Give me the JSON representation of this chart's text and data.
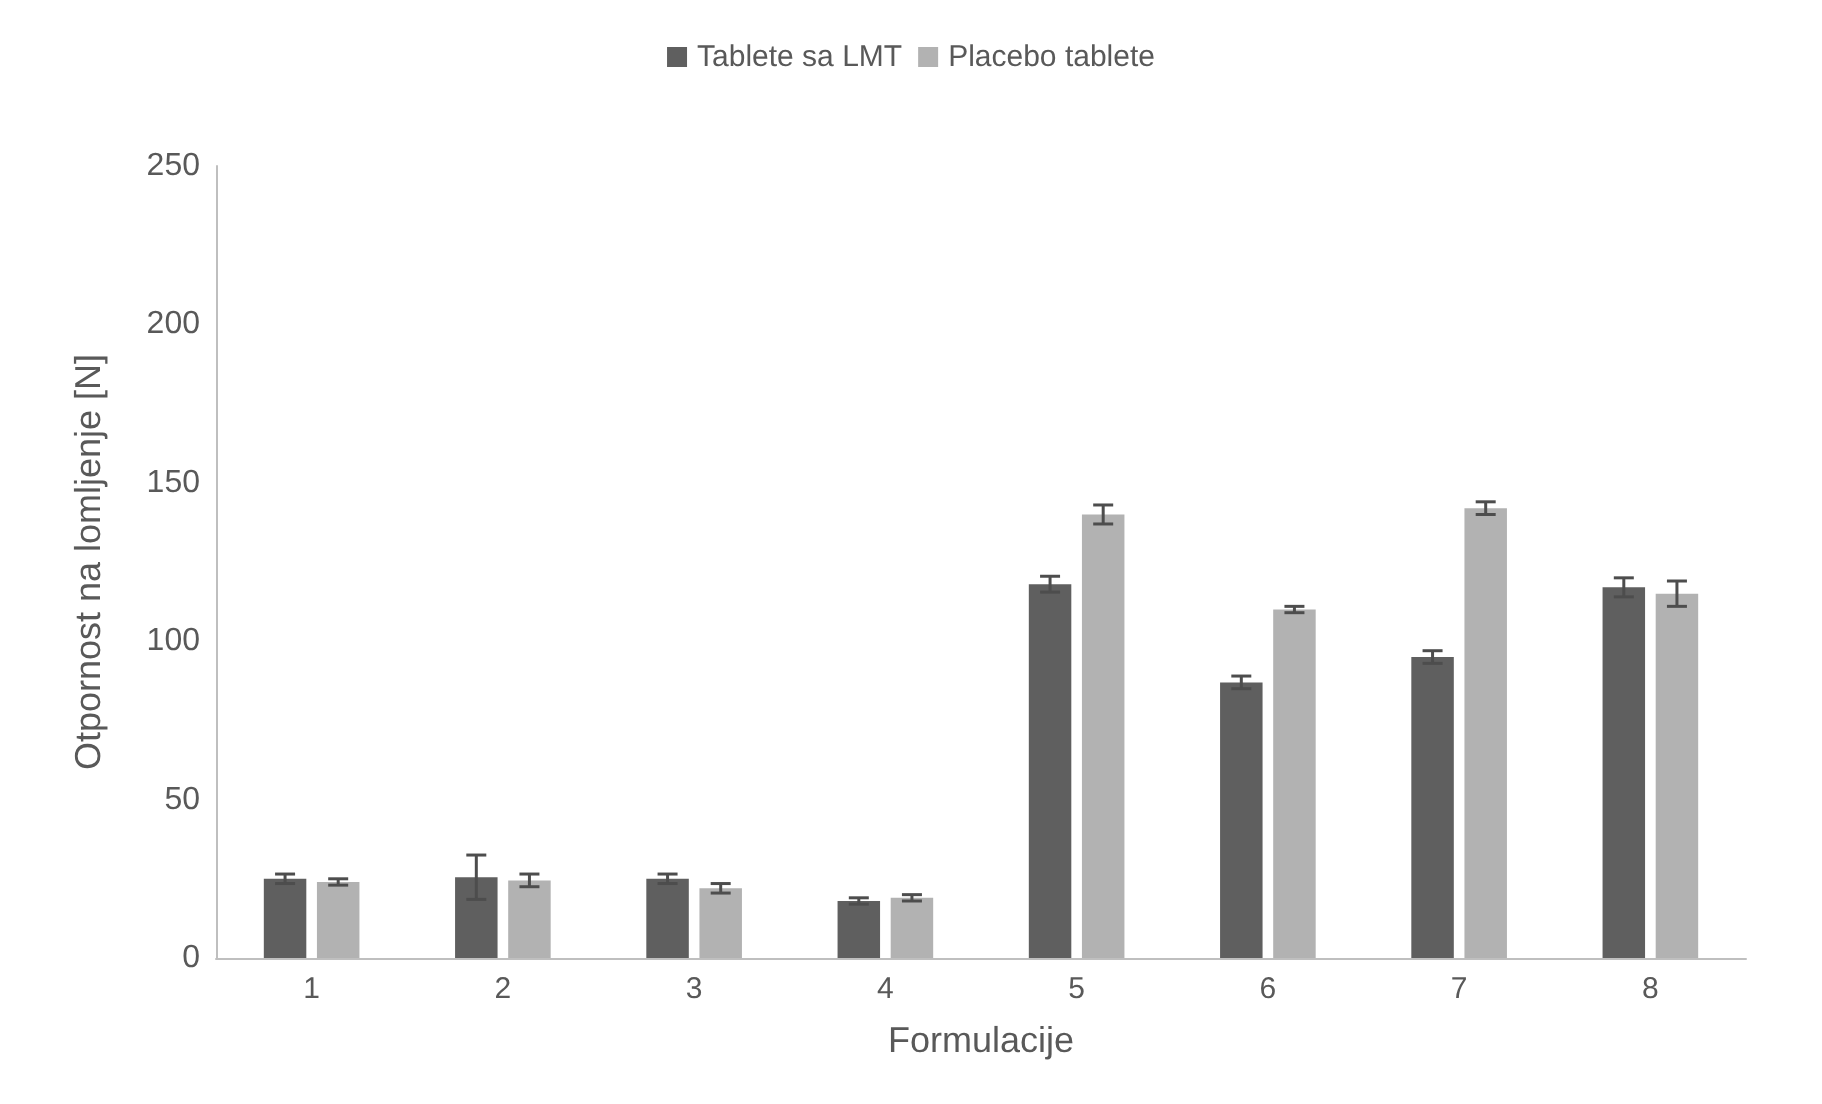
{
  "chart_data": {
    "type": "bar",
    "xlabel": "Formulacije",
    "ylabel": "Otpornost na lomljenje [N]",
    "categories": [
      "1",
      "2",
      "3",
      "4",
      "5",
      "6",
      "7",
      "8"
    ],
    "series": [
      {
        "name": "Tablete sa LMT",
        "color": "#5f5f5f",
        "values": [
          25,
          25.5,
          25,
          18,
          118,
          87,
          95,
          117
        ],
        "errors": [
          1.5,
          7,
          1.5,
          1,
          2.5,
          2,
          2,
          3
        ]
      },
      {
        "name": "Placebo tablete",
        "color": "#b2b2b2",
        "values": [
          24,
          24.5,
          22,
          19,
          140,
          110,
          142,
          115
        ],
        "errors": [
          1,
          2,
          1.5,
          1,
          3,
          1,
          2,
          4
        ]
      }
    ],
    "ylim": [
      0,
      250
    ],
    "yticks": [
      0,
      50,
      100,
      150,
      200,
      250
    ],
    "grid": false,
    "legend": "top"
  }
}
